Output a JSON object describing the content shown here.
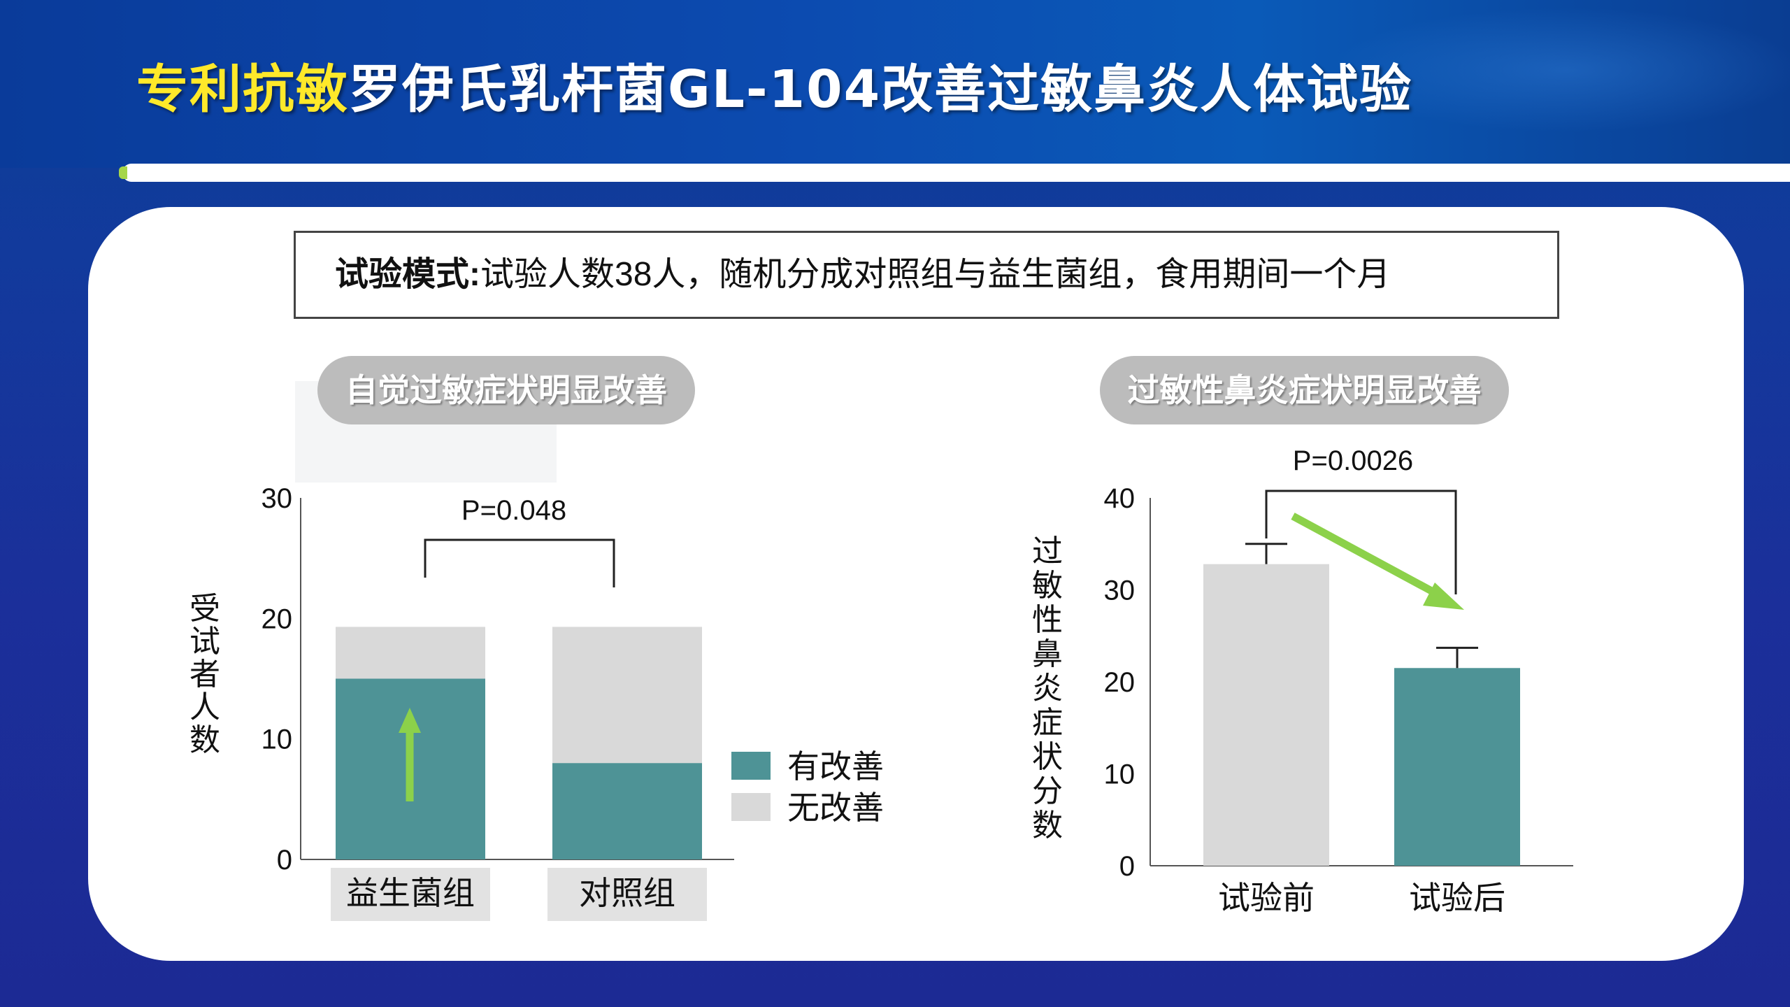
{
  "title": {
    "accent": "专利抗敏",
    "main": "罗伊氏乳杆菌GL-104改善过敏鼻炎人体试验"
  },
  "note": {
    "label": "试验模式:",
    "text": "试验人数38人，随机分成对照组与益生菌组，食用期间一个月"
  },
  "colors": {
    "improved": "#4e9396",
    "not_improved": "#d9d9d9",
    "before": "#d9d9d9",
    "after": "#4e9396",
    "arrow": "#8cd14a",
    "title_accent": "#ffe92a"
  },
  "chart_data": [
    {
      "type": "bar",
      "stacked": true,
      "title": "自觉过敏症状明显改善",
      "ylabel": "受试者人数",
      "categories": [
        "益生菌组",
        "对照组"
      ],
      "series": [
        {
          "name": "有改善",
          "values": [
            15,
            8
          ]
        },
        {
          "name": "无改善",
          "values": [
            4.3,
            11.3
          ]
        }
      ],
      "ylim": [
        0,
        30
      ],
      "yticks": [
        0,
        10,
        20,
        30
      ],
      "annotation": "P=0.048",
      "legend": "right"
    },
    {
      "type": "bar",
      "title": "过敏性鼻炎症状明显改善",
      "ylabel": "过敏性鼻炎症状分数",
      "categories": [
        "试验前",
        "试验后"
      ],
      "values": [
        32.8,
        21.5
      ],
      "error": [
        2.2,
        2.2
      ],
      "ylim": [
        0,
        40
      ],
      "yticks": [
        0,
        10,
        20,
        30,
        40
      ],
      "annotation": "P=0.0026"
    }
  ]
}
